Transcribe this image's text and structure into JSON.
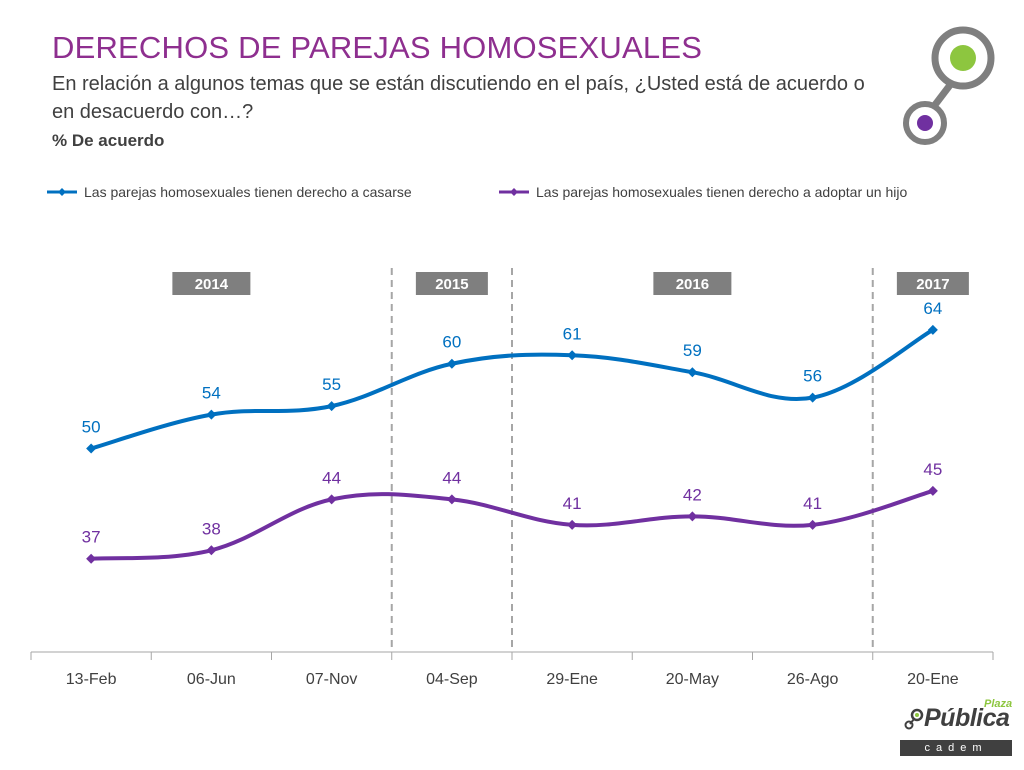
{
  "header": {
    "title": "DERECHOS DE PAREJAS HOMOSEXUALES",
    "subtitle": "En relación a algunos temas que se están discutiendo en el país, ¿Usted está de acuerdo o en desacuerdo con…?",
    "measure": "% De acuerdo"
  },
  "brand": {
    "plaza": "Plaza",
    "publica": "Pública",
    "cadem": "cadem"
  },
  "colors": {
    "series1": "#0070c0",
    "series2": "#7030a0",
    "title": "#8e2f8f",
    "year_box": "#7f7f7f",
    "logo_green": "#8dc63f",
    "logo_gray": "#7f7f7f"
  },
  "chart_data": {
    "type": "line",
    "categories": [
      "13-Feb",
      "06-Jun",
      "07-Nov",
      "04-Sep",
      "29-Ene",
      "20-May",
      "26-Ago",
      "20-Ene"
    ],
    "series": [
      {
        "name": "Las parejas homosexuales tienen derecho a casarse",
        "values": [
          50,
          54,
          55,
          60,
          61,
          59,
          56,
          64
        ]
      },
      {
        "name": "Las parejas homosexuales tienen derecho a adoptar un hijo",
        "values": [
          37,
          38,
          44,
          44,
          41,
          42,
          41,
          45
        ]
      }
    ],
    "years": [
      {
        "label": "2014",
        "start": 0,
        "end": 2
      },
      {
        "label": "2015",
        "start": 3,
        "end": 3
      },
      {
        "label": "2016",
        "start": 4,
        "end": 6
      },
      {
        "label": "2017",
        "start": 7,
        "end": 7
      }
    ],
    "ylim": [
      26,
      72
    ],
    "xlabel": "",
    "ylabel": "",
    "grid": false,
    "legend": "top"
  }
}
